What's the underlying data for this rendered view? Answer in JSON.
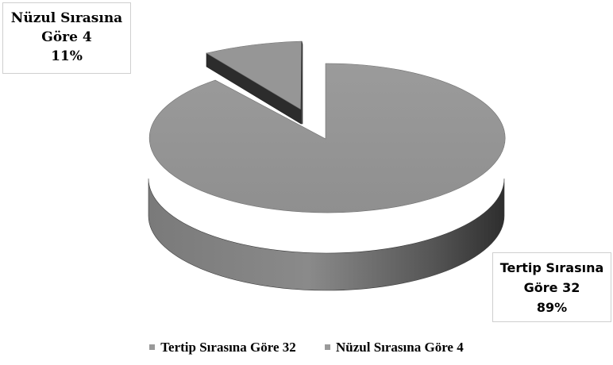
{
  "chart_data": {
    "type": "pie",
    "style": "3d-exploded",
    "title": "",
    "slices": [
      {
        "label": "Tertip Sırasına Göre 32",
        "value": 32,
        "percent": "89%",
        "label_lines": [
          "Tertip Sırasına",
          "Göre 32",
          "89%"
        ]
      },
      {
        "label": "Nüzul Sırasına Göre 4",
        "value": 4,
        "percent": "11%",
        "label_lines": [
          "Nüzul Sırasına",
          "Göre 4",
          "11%"
        ]
      }
    ],
    "legend": {
      "placement": "bottom",
      "items": [
        "Tertip Sırasına Göre 32",
        "Nüzul Sırasına Göre 4"
      ]
    },
    "colors": {
      "slice_top": "#959595",
      "slice_side_light": "#838383",
      "slice_side_dark": "#2f2f2f",
      "legend_swatch": "#9a9a9a"
    }
  }
}
